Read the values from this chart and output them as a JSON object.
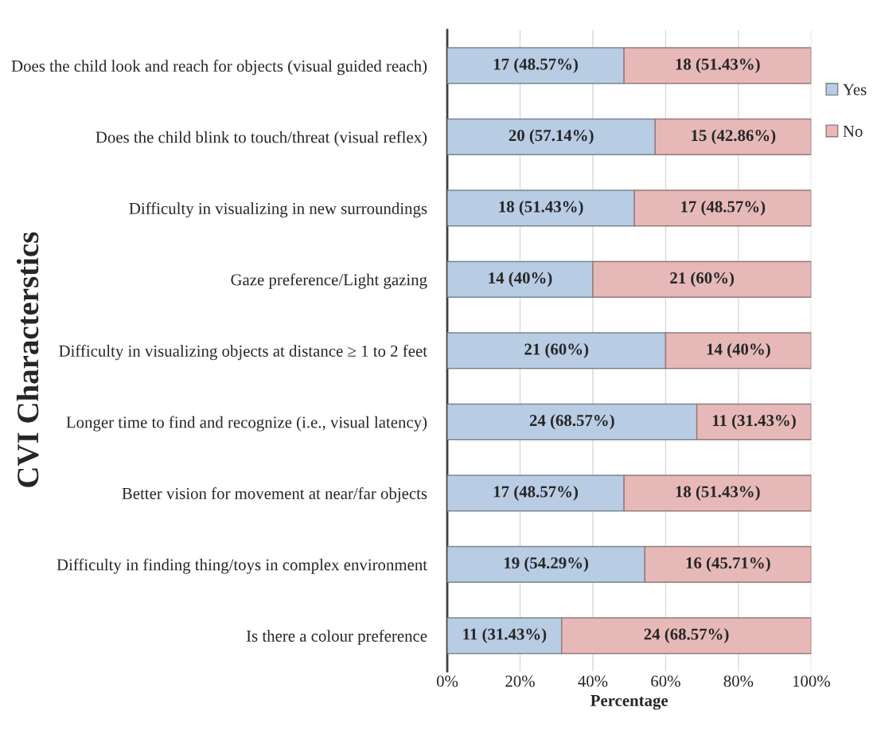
{
  "chart_data": {
    "type": "bar",
    "orientation": "horizontal",
    "stacked": true,
    "xlabel": "Percentage",
    "ylabel": "CVI Characterstics",
    "categories": [
      "Does the child look and reach for objects (visual guided reach)",
      "Does the child blink to touch/threat (visual reflex)",
      "Difficulty in visualizing in new surroundings",
      "Gaze preference/Light gazing",
      "Difficulty in visualizing objects at distance ≥ 1 to 2 feet",
      "Longer time to find and recognize (i.e., visual latency)",
      "Better vision for movement at near/far objects",
      "Difficulty in finding thing/toys in complex environment",
      "Is there a colour preference"
    ],
    "series": [
      {
        "name": "Yes",
        "color": "#b8cce4",
        "values": [
          48.57,
          57.14,
          51.43,
          40,
          60,
          68.57,
          48.57,
          54.29,
          31.43
        ],
        "value_labels": [
          "17 (48.57%)",
          "20 (57.14%)",
          "18 (51.43%)",
          "14 (40%)",
          "21 (60%)",
          "24 (68.57%)",
          "17 (48.57%)",
          "19 (54.29%)",
          "11 (31.43%)"
        ]
      },
      {
        "name": "No",
        "color": "#e6b9b8",
        "values": [
          51.43,
          42.86,
          48.57,
          60,
          40,
          31.43,
          51.43,
          45.71,
          68.57
        ],
        "value_labels": [
          "18 (51.43%)",
          "15 (42.86%)",
          "17 (48.57%)",
          "21 (60%)",
          "14 (40%)",
          "11 (31.43%)",
          "18 (51.43%)",
          "16 (45.71%)",
          "24 (68.57%)"
        ]
      }
    ],
    "xlim": [
      0,
      100
    ],
    "xticks": [
      {
        "value": 0,
        "label": "0%"
      },
      {
        "value": 20,
        "label": "20%"
      },
      {
        "value": 40,
        "label": "40%"
      },
      {
        "value": 60,
        "label": "60%"
      },
      {
        "value": 80,
        "label": "80%"
      },
      {
        "value": 100,
        "label": "100%"
      }
    ],
    "grid": "x",
    "legend": "top right"
  }
}
